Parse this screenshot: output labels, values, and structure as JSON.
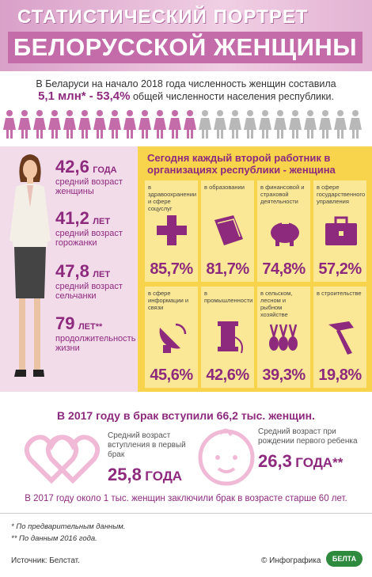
{
  "header": {
    "title": [
      "СТАТИСТИЧЕСКИЙ ПОРТРЕТ",
      "БЕЛОРУССКОЙ ЖЕНЩИНЫ"
    ]
  },
  "intro": {
    "text": "В Беларуси на начало 2018 года численность женщин составила",
    "highlight": "5,1 млн* - 53,4%",
    "rest": "общей численности населения республики."
  },
  "ages": [
    {
      "value": "42,6",
      "unit": "ГОДА",
      "label": "средний возраст женщины"
    },
    {
      "value": "41,2",
      "unit": "ЛЕТ",
      "label": "средний возраст горожанки"
    },
    {
      "value": "47,8",
      "unit": "ЛЕТ",
      "label": "средний возраст сельчанки"
    },
    {
      "value": "79",
      "unit": "ЛЕТ**",
      "label": "продолжительность жизни"
    }
  ],
  "employment": {
    "title": "Сегодня каждый второй работник в организациях республики - женщина",
    "sectors": [
      {
        "label": "в здравоохранении и сфере соцуслуг",
        "share": "85,7%"
      },
      {
        "label": "в образовании",
        "share": "81,7%"
      },
      {
        "label": "в финансовой и страховой деятельности",
        "share": "74,8%"
      },
      {
        "label": "в сфере государственного управления",
        "share": "57,2%"
      },
      {
        "label": "в сфере информации и связи",
        "share": "45,6%"
      },
      {
        "label": "в промышленности",
        "share": "42,6%"
      },
      {
        "label": "в сельском, лесном и рыбном хозяйстве",
        "share": "39,3%"
      },
      {
        "label": "в строительстве",
        "share": "19,8%"
      }
    ]
  },
  "marriage": {
    "title": "В 2017 году в брак вступили 66,2 тыс. женщин.",
    "facts": [
      {
        "label": "Средний возраст вступления в первый брак",
        "value": "25,8",
        "unit": "ГОДА"
      },
      {
        "label": "Средний возраст при рождении первого ребенка",
        "value": "26,3",
        "unit": "ГОДА**"
      }
    ],
    "note": "В 2017 году около 1 тыс. женщин заключили брак в возрасте старше 60 лет."
  },
  "footnotes": [
    "* По предварительным данным.",
    "** По данным 2016 года."
  ],
  "footer": {
    "source": "Источник: Белстат.",
    "credit": "© Инфографика",
    "logo": "БЕЛТА"
  }
}
